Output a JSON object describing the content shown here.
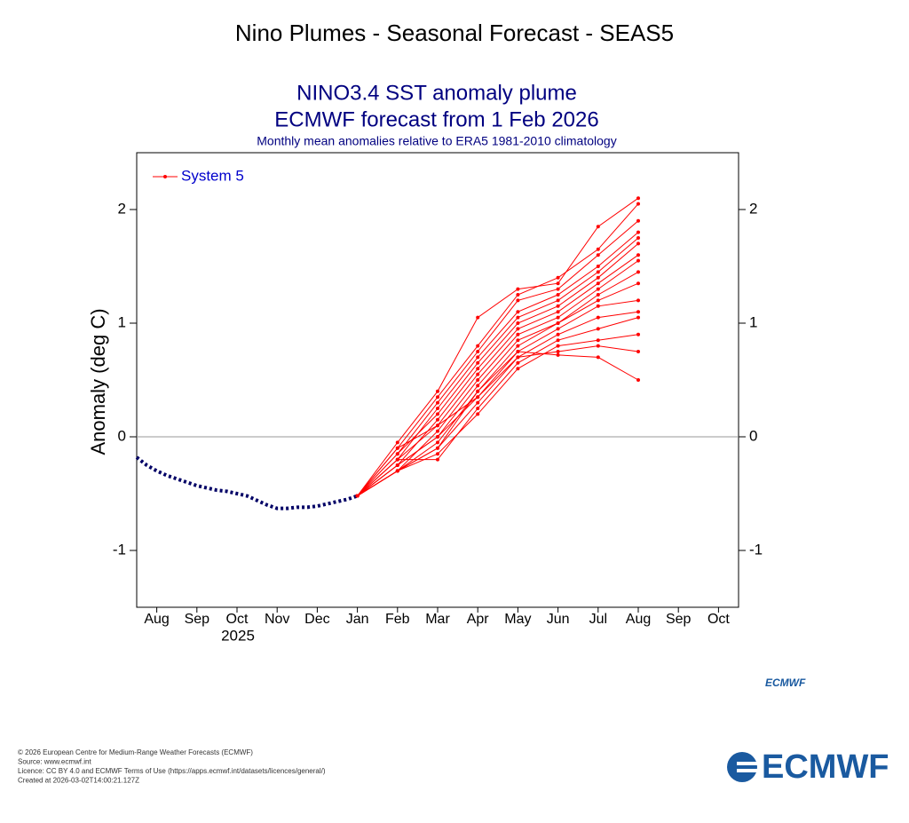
{
  "page": {
    "heading": "Nino Plumes - Seasonal Forecast - SEAS5",
    "footer": [
      "© 2026 European Centre for Medium-Range Weather Forecasts (ECMWF)",
      "Source: www.ecmwf.int",
      "Licence: CC BY 4.0 and ECMWF Terms of Use (https://apps.ecmwf.int/datasets/licences/general/)",
      "Created at 2026-03-02T14:00:21.127Z"
    ],
    "logo_small": "ECMWF",
    "logo": "ECMWF"
  },
  "chart_data": {
    "type": "plume",
    "title": "NINO3.4 SST anomaly plume",
    "title2": "ECMWF forecast from 1 Feb 2026",
    "subtitle": "Monthly mean anomalies relative to ERA5 1981-2010 climatology",
    "y_label": "Anomaly (deg C)",
    "year_label": "2025",
    "xlim": [
      -0.5,
      14.5
    ],
    "ylim": [
      -1.5,
      2.5
    ],
    "xticks": [
      {
        "value": 0,
        "label": "Aug"
      },
      {
        "value": 1,
        "label": "Sep"
      },
      {
        "value": 2,
        "label": "Oct"
      },
      {
        "value": 3,
        "label": "Nov"
      },
      {
        "value": 4,
        "label": "Dec"
      },
      {
        "value": 5,
        "label": "Jan"
      },
      {
        "value": 6,
        "label": "Feb"
      },
      {
        "value": 7,
        "label": "Mar"
      },
      {
        "value": 8,
        "label": "Apr"
      },
      {
        "value": 9,
        "label": "May"
      },
      {
        "value": 10,
        "label": "Jun"
      },
      {
        "value": 11,
        "label": "Jul"
      },
      {
        "value": 12,
        "label": "Aug"
      },
      {
        "value": 13,
        "label": "Sep"
      },
      {
        "value": 14,
        "label": "Oct"
      }
    ],
    "yticks": [
      -1,
      0,
      1,
      2
    ],
    "hline": 0,
    "legend": "upper left",
    "observed": {
      "color": "#000066",
      "x": [
        -0.5,
        -0.25,
        0,
        0.25,
        0.5,
        0.75,
        1,
        1.25,
        1.5,
        1.75,
        2,
        2.25,
        2.5,
        2.75,
        3,
        3.25,
        3.5,
        3.75,
        4,
        4.25,
        4.5,
        4.75,
        5
      ],
      "values": [
        -0.18,
        -0.25,
        -0.3,
        -0.34,
        -0.37,
        -0.4,
        -0.43,
        -0.45,
        -0.47,
        -0.48,
        -0.5,
        -0.52,
        -0.56,
        -0.6,
        -0.63,
        -0.63,
        -0.62,
        -0.62,
        -0.61,
        -0.59,
        -0.57,
        -0.55,
        -0.52
      ]
    },
    "forecast": {
      "name": "System 5",
      "color": "#ff0000",
      "x": [
        5,
        6,
        7,
        8,
        9,
        10,
        11,
        12
      ],
      "members": [
        [
          -0.52,
          -0.05,
          0.4,
          1.05,
          1.3,
          1.35,
          1.85,
          2.1
        ],
        [
          -0.52,
          -0.1,
          0.35,
          0.8,
          1.25,
          1.4,
          1.65,
          2.05
        ],
        [
          -0.52,
          -0.15,
          0.3,
          0.75,
          1.2,
          1.3,
          1.6,
          1.9
        ],
        [
          -0.52,
          -0.2,
          0.25,
          0.7,
          1.1,
          1.25,
          1.5,
          1.8
        ],
        [
          -0.52,
          -0.15,
          0.2,
          0.65,
          1.05,
          1.2,
          1.45,
          1.75
        ],
        [
          -0.52,
          -0.25,
          0.15,
          0.6,
          1.0,
          1.15,
          1.4,
          1.7
        ],
        [
          -0.52,
          -0.2,
          0.1,
          0.55,
          0.95,
          1.1,
          1.35,
          1.6
        ],
        [
          -0.52,
          -0.3,
          0.05,
          0.5,
          0.9,
          1.05,
          1.3,
          1.55
        ],
        [
          -0.52,
          -0.25,
          0.0,
          0.45,
          0.85,
          1.0,
          1.25,
          1.45
        ],
        [
          -0.52,
          -0.3,
          -0.05,
          0.4,
          0.8,
          1.0,
          1.2,
          1.35
        ],
        [
          -0.52,
          -0.1,
          0.1,
          0.35,
          0.75,
          0.95,
          1.15,
          1.2
        ],
        [
          -0.52,
          -0.3,
          -0.1,
          0.3,
          0.7,
          0.9,
          1.05,
          1.1
        ],
        [
          -0.52,
          -0.2,
          -0.2,
          0.25,
          0.65,
          0.85,
          0.95,
          1.05
        ],
        [
          -0.52,
          -0.3,
          -0.15,
          0.2,
          0.6,
          0.8,
          0.85,
          0.9
        ],
        [
          -0.52,
          -0.25,
          0.0,
          0.35,
          0.7,
          0.75,
          0.8,
          0.75
        ],
        [
          -0.52,
          -0.3,
          -0.1,
          0.4,
          0.75,
          0.72,
          0.7,
          0.5
        ]
      ]
    }
  }
}
